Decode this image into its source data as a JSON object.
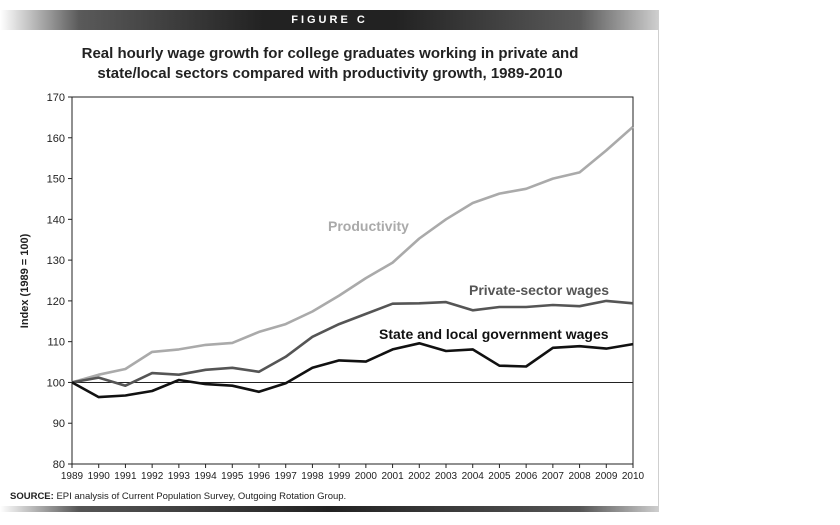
{
  "figure_label": "FIGURE C",
  "source": {
    "prefix": "SOURCE:",
    "text": " EPI analysis of Current Population Survey, Outgoing Rotation Group."
  },
  "chart_data": {
    "type": "line",
    "title_line1": "Real hourly wage growth for college graduates working in private and",
    "title_line2": "state/local sectors compared with productivity growth, 1989-2010",
    "ylabel": "Index (1989 = 100)",
    "xlabel": "",
    "ylim": [
      80,
      170
    ],
    "yticks": [
      80,
      90,
      100,
      110,
      120,
      130,
      140,
      150,
      160,
      170
    ],
    "baseline": 100,
    "grid": false,
    "x": [
      "1989",
      "1990",
      "1991",
      "1992",
      "1993",
      "1994",
      "1995",
      "1996",
      "1997",
      "1998",
      "1999",
      "2000",
      "2001",
      "2002",
      "2003",
      "2004",
      "2005",
      "2006",
      "2007",
      "2008",
      "2009",
      "2010"
    ],
    "series": [
      {
        "name": "Productivity",
        "color": "#aaaaaa",
        "values": [
          100,
          101.9,
          103.3,
          107.5,
          108.1,
          109.2,
          109.7,
          112.4,
          114.3,
          117.4,
          121.3,
          125.6,
          129.4,
          135.3,
          140.0,
          144.0,
          146.3,
          147.5,
          150.0,
          151.5,
          156.9,
          162.7
        ]
      },
      {
        "name": "Private-sector wages",
        "color": "#555555",
        "values": [
          100,
          101.2,
          99.2,
          102.3,
          101.9,
          103.1,
          103.6,
          102.6,
          106.3,
          111.2,
          114.3,
          116.8,
          119.3,
          119.4,
          119.7,
          117.7,
          118.5,
          118.5,
          119.0,
          118.7,
          120.0,
          119.4
        ]
      },
      {
        "name": "State and local government wages",
        "color": "#111111",
        "values": [
          100,
          96.4,
          96.8,
          97.9,
          100.6,
          99.6,
          99.2,
          97.7,
          99.8,
          103.6,
          105.4,
          105.1,
          108.1,
          109.6,
          107.7,
          108.1,
          104.1,
          103.9,
          108.5,
          108.9,
          108.3,
          109.4
        ]
      }
    ]
  }
}
